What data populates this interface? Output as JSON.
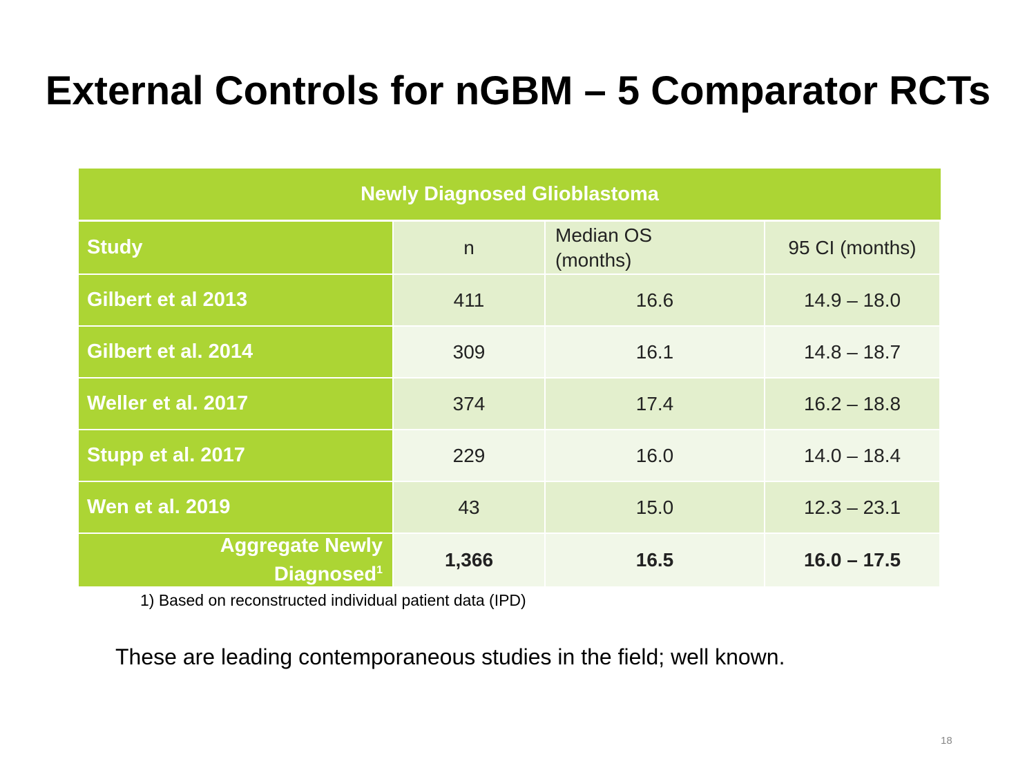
{
  "slide": {
    "title": "External Controls for nGBM – 5 Comparator RCTs",
    "footnote": "1) Based on reconstructed individual patient data (IPD)",
    "body": "These are leading contemporaneous studies in the field;  well known.",
    "page_number": "18"
  },
  "table": {
    "caption": "Newly Diagnosed Glioblastoma",
    "headers": {
      "study": "Study",
      "n": "n",
      "median_os_line1": "Median OS",
      "median_os_line2": "(months)",
      "ci": "95 CI (months)"
    },
    "rows": [
      {
        "study": "Gilbert et al 2013",
        "n": "411",
        "median_os": "16.6",
        "ci": "14.9 – 18.0"
      },
      {
        "study": "Gilbert et al. 2014",
        "n": "309",
        "median_os": "16.1",
        "ci": "14.8 – 18.7"
      },
      {
        "study": "Weller et al. 2017",
        "n": "374",
        "median_os": "17.4",
        "ci": "16.2 – 18.8"
      },
      {
        "study": "Stupp et al. 2017",
        "n": "229",
        "median_os": "16.0",
        "ci": "14.0 – 18.4"
      },
      {
        "study": "Wen et al. 2019",
        "n": "43",
        "median_os": "15.0",
        "ci": "12.3 – 23.1"
      }
    ],
    "aggregate": {
      "label_line1": "Aggregate Newly",
      "label_line2": "Diagnosed",
      "label_sup": "1",
      "n": "1,366",
      "median_os": "16.5",
      "ci": "16.0 – 17.5"
    }
  },
  "colors": {
    "accent_green": "#acd534",
    "cell_shade_a": "#e3efcd",
    "cell_shade_b": "#f1f7e8"
  }
}
